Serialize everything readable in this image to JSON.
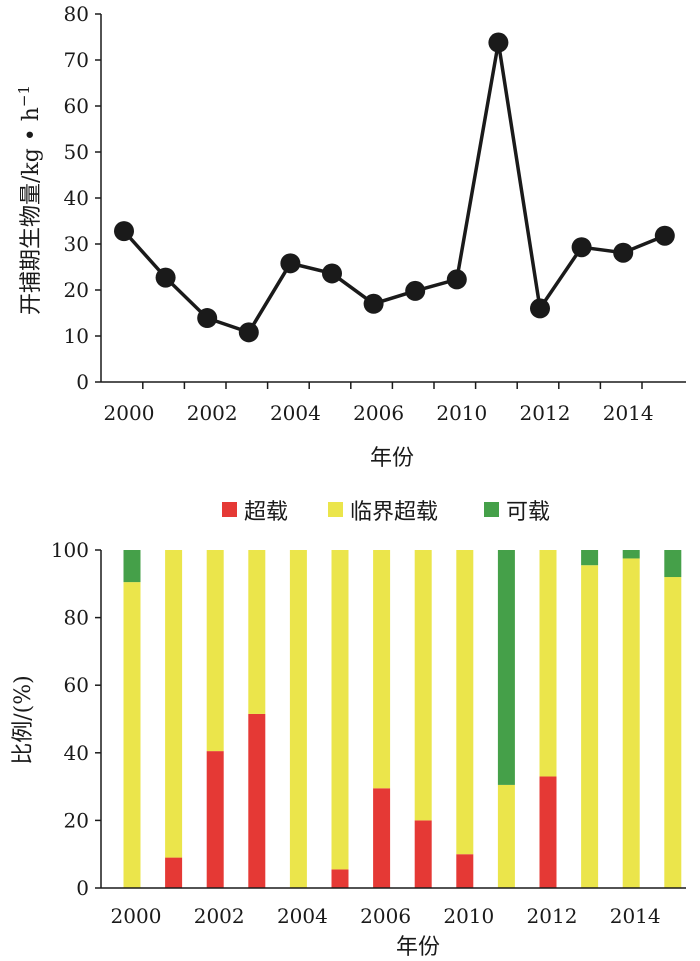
{
  "chart_data": [
    {
      "type": "line",
      "x": [
        "2000",
        "2001",
        "2002",
        "2003",
        "2004",
        "2005",
        "2006",
        "2007",
        "2010",
        "2011",
        "2012",
        "2013",
        "2014",
        "2015"
      ],
      "x_tick_labels": [
        "2000",
        "2002",
        "2004",
        "2006",
        "2010",
        "2012",
        "2014"
      ],
      "series": [
        {
          "values": [
            32.8,
            22.7,
            13.9,
            10.8,
            25.8,
            23.6,
            17.0,
            19.8,
            22.3,
            73.8,
            16.0,
            29.3,
            28.1,
            31.8
          ]
        }
      ],
      "xlabel": "年份",
      "ylabel": "开捕期生物量/kg • h",
      "ylabel_sup": "−1",
      "ylim": [
        0,
        80
      ],
      "yticks": [
        "0",
        "10",
        "20",
        "30",
        "40",
        "50",
        "60",
        "70",
        "80"
      ],
      "grid": false
    },
    {
      "type": "bar",
      "stacked": true,
      "categories": [
        "2000",
        "2001",
        "2002",
        "2003",
        "2004",
        "2005",
        "2006",
        "2007",
        "2010",
        "2011",
        "2012",
        "2013",
        "2014",
        "2015"
      ],
      "x_tick_labels": [
        "2000",
        "2002",
        "2004",
        "2006",
        "2010",
        "2012",
        "2014"
      ],
      "series": [
        {
          "name": "超载",
          "color": "#e53935",
          "values": [
            0,
            9,
            40.5,
            51.5,
            0,
            5.5,
            29.5,
            20,
            10,
            0,
            33,
            0,
            0,
            0
          ]
        },
        {
          "name": "临界超载",
          "color": "#ebe54b",
          "values": [
            90.5,
            91,
            59.5,
            48.5,
            100,
            94.5,
            70.5,
            80,
            90,
            30.5,
            67,
            95.5,
            97.5,
            92
          ]
        },
        {
          "name": "可载",
          "color": "#45a049",
          "values": [
            9.5,
            0,
            0,
            0,
            0,
            0,
            0,
            0,
            0,
            69.5,
            0,
            4.5,
            2.5,
            8
          ]
        }
      ],
      "xlabel": "年份",
      "ylabel": "比例/(%)",
      "ylim": [
        0,
        100
      ],
      "yticks": [
        "0",
        "20",
        "40",
        "60",
        "80",
        "100"
      ],
      "legend": "top-center",
      "grid": false
    }
  ]
}
